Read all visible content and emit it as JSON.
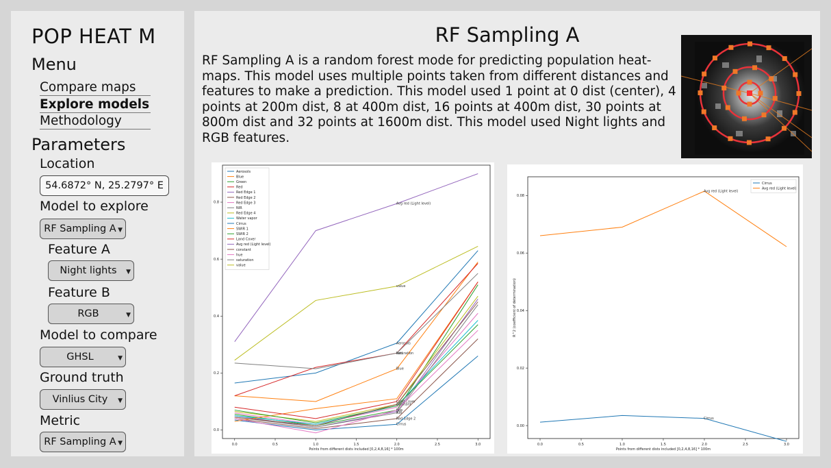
{
  "sidebar": {
    "app_title": "POP HEAT M",
    "menu_heading": "Menu",
    "menu_items": [
      {
        "label": "Compare maps",
        "active": false
      },
      {
        "label": "Explore models",
        "active": true
      },
      {
        "label": "Methodology",
        "active": false
      }
    ],
    "parameters_heading": "Parameters",
    "location_label": "Location",
    "location_value": "54.6872° N, 25.2797° E",
    "model_explore_label": "Model to explore",
    "model_explore_value": "RF Sampling A",
    "feature_a_label": "Feature A",
    "feature_a_value": "Night lights",
    "feature_b_label": "Feature B",
    "feature_b_value": "RGB",
    "model_compare_label": "Model to compare",
    "model_compare_value": "GHSL",
    "ground_truth_label": "Ground truth",
    "ground_truth_value": "Vinlius City",
    "metric_label": "Metric",
    "metric_value": "RF Sampling A",
    "dropdown_icon": "triangle-down-icon"
  },
  "main": {
    "title": "RF Sampling A",
    "description": "RF Sampling A is a random forest mode for predicting population heat-maps. This model uses multiple points taken from different distances and features to make a prediction. This model used 1 point at 0 dist (center), 4 points at 200m dist, 8 at 400m dist, 16 points at 400m dist, 30 points at 800m dist and 32 points at 1600m dist. This model used Night lights and RGB features."
  },
  "chart_data": [
    {
      "type": "line",
      "x": [
        0,
        1,
        2,
        3
      ],
      "xlabel": "Points from different dists included [0,2,4,8,16] * 100m",
      "ylabel": "",
      "xlim": [
        -0.15,
        3.15
      ],
      "ylim": [
        -0.03,
        0.93
      ],
      "xticks": [
        "0.0",
        "0.5",
        "1.0",
        "1.5",
        "2.0",
        "2.5",
        "3.0"
      ],
      "yticks": [
        "0.0",
        "0.2",
        "0.4",
        "0.6",
        "0.8"
      ],
      "legend_position": "top-left",
      "series": [
        {
          "name": "Aerosols",
          "color": "#1f77b4",
          "values": [
            0.165,
            0.2,
            0.305,
            0.63
          ],
          "label": "Aerosols"
        },
        {
          "name": "Blue",
          "color": "#ff7f0e",
          "values": [
            0.12,
            0.1,
            0.215,
            0.59
          ],
          "label": "Blue"
        },
        {
          "name": "Green",
          "color": "#2ca02c",
          "values": [
            0.055,
            0.015,
            0.07,
            0.51
          ],
          "label": ""
        },
        {
          "name": "Red",
          "color": "#d62728",
          "values": [
            0.12,
            0.22,
            0.27,
            0.585
          ],
          "label": "Red"
        },
        {
          "name": "Red Edge 1",
          "color": "#9467bd",
          "values": [
            0.05,
            0.01,
            0.065,
            0.46
          ],
          "label": ""
        },
        {
          "name": "Red Edge 2",
          "color": "#8c564b",
          "values": [
            0.04,
            0.005,
            0.04,
            0.32
          ],
          "label": "Red Edge 2"
        },
        {
          "name": "Red Edge 3",
          "color": "#e377c2",
          "values": [
            0.06,
            0.02,
            0.08,
            0.41
          ],
          "label": ""
        },
        {
          "name": "NIR",
          "color": "#7f7f7f",
          "values": [
            0.045,
            0.01,
            0.06,
            0.44
          ],
          "label": "NIR"
        },
        {
          "name": "Red Edge 4",
          "color": "#bcbd22",
          "values": [
            0.065,
            0.03,
            0.09,
            0.47
          ],
          "label": ""
        },
        {
          "name": "Water vapor",
          "color": "#17becf",
          "values": [
            0.05,
            0.02,
            0.085,
            0.385
          ],
          "label": ""
        },
        {
          "name": "Cirrus",
          "color": "#1f77b4",
          "values": [
            0.035,
            0.0,
            0.02,
            0.26
          ],
          "label": "Cirrus"
        },
        {
          "name": "SWIR 1",
          "color": "#ff7f0e",
          "values": [
            0.03,
            0.075,
            0.11,
            0.52
          ],
          "label": ""
        },
        {
          "name": "SWIR 2",
          "color": "#2ca02c",
          "values": [
            0.07,
            0.025,
            0.085,
            0.37
          ],
          "label": ""
        },
        {
          "name": "Land Cover",
          "color": "#d62728",
          "values": [
            0.08,
            0.04,
            0.1,
            0.52
          ],
          "label": "Land Cover"
        },
        {
          "name": "Avg red (Light level)",
          "color": "#9467bd",
          "values": [
            0.31,
            0.7,
            0.795,
            0.9
          ],
          "label": "Avg red (Light level)"
        },
        {
          "name": "constant",
          "color": "#8c564b",
          "values": [
            0.045,
            0.015,
            0.09,
            0.45
          ],
          "label": "constant"
        },
        {
          "name": "hue",
          "color": "#e377c2",
          "values": [
            0.04,
            -0.01,
            0.07,
            0.35
          ],
          "label": "hue"
        },
        {
          "name": "saturation",
          "color": "#7f7f7f",
          "values": [
            0.235,
            0.215,
            0.27,
            0.55
          ],
          "label": "saturation"
        },
        {
          "name": "value",
          "color": "#bcbd22",
          "values": [
            0.245,
            0.455,
            0.505,
            0.645
          ],
          "label": "value"
        }
      ]
    },
    {
      "type": "line",
      "x": [
        0,
        1,
        2,
        3
      ],
      "xlabel": "Points from different dists included [0,2,4,8,16] * 100m",
      "ylabel": "R^2 (coefficient of determination)",
      "xlim": [
        -0.15,
        3.15
      ],
      "ylim": [
        -0.0045,
        0.0865
      ],
      "xticks": [
        "0.0",
        "0.5",
        "1.0",
        "1.5",
        "2.0",
        "2.5",
        "3.0"
      ],
      "yticks": [
        "0.00",
        "0.02",
        "0.04",
        "0.06",
        "0.08"
      ],
      "legend_position": "top-right",
      "series": [
        {
          "name": "Cirrus",
          "color": "#1f77b4",
          "values": [
            0.0012,
            0.0035,
            0.0025,
            -0.0055
          ],
          "label": "Cirrus"
        },
        {
          "name": "Avg red (Light level)",
          "color": "#ff7f0e",
          "values": [
            0.066,
            0.069,
            0.0815,
            0.0622
          ],
          "label": "Avg red (Light level)"
        }
      ]
    }
  ]
}
